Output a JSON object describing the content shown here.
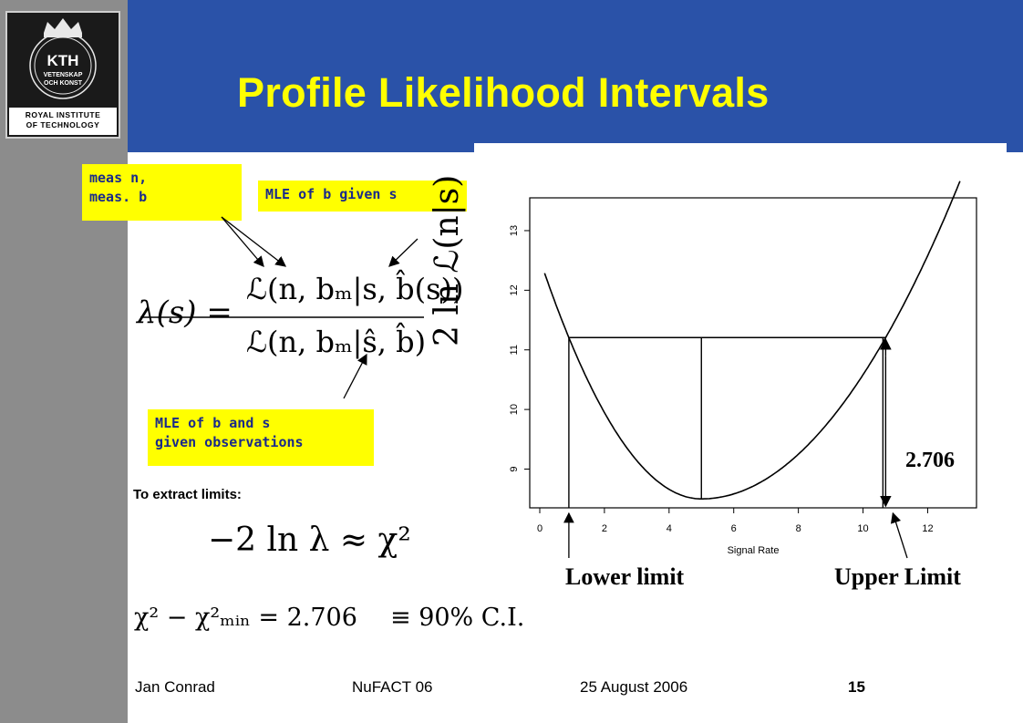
{
  "title": "Profile Likelihood Intervals",
  "logo": {
    "main": "KTH",
    "line1": "VETENSKAP",
    "line2": "OCH KONST",
    "bottom1": "ROYAL INSTITUTE",
    "bottom2": "OF TECHNOLOGY"
  },
  "callouts": {
    "meas_line1": "meas n,",
    "meas_line2": "meas. b",
    "mle_given_s": "MLE of b given s",
    "mle_bs_line1": "MLE of b and s",
    "mle_bs_line2": "given observations"
  },
  "formulas": {
    "lambda_lhs": "λ(s) =",
    "numerator": "ℒ(n, bₘ|s, b̂(s))",
    "denominator": "ℒ(n, bₘ|ŝ, b̂)",
    "extract_label": "To extract limits:",
    "approx": "−2 ln λ ≈ χ²",
    "chi_diff": "χ² − χ²ₘᵢₙ = 2.706",
    "equiv": "≡  90% C.I."
  },
  "chart_data": {
    "type": "line",
    "ylabel": "2 ln ℒ(n|s)",
    "xlabel": "Signal Rate",
    "xlim": [
      0,
      13.2
    ],
    "ylim": [
      8.35,
      13.55
    ],
    "xticks": [
      0,
      2,
      4,
      6,
      8,
      10,
      12
    ],
    "yticks": [
      9,
      10,
      11,
      12,
      13
    ],
    "minimum": {
      "x": 5,
      "y": 8.5
    },
    "level": 11.206,
    "lower_limit": 0.9,
    "upper_limit": 10.7,
    "delta_label": "2.706",
    "lower_label": "Lower limit",
    "upper_label": "Upper Limit"
  },
  "footer": {
    "author": "Jan Conrad",
    "event": "NuFACT 06",
    "date": "25 August 2006",
    "page": "15"
  }
}
